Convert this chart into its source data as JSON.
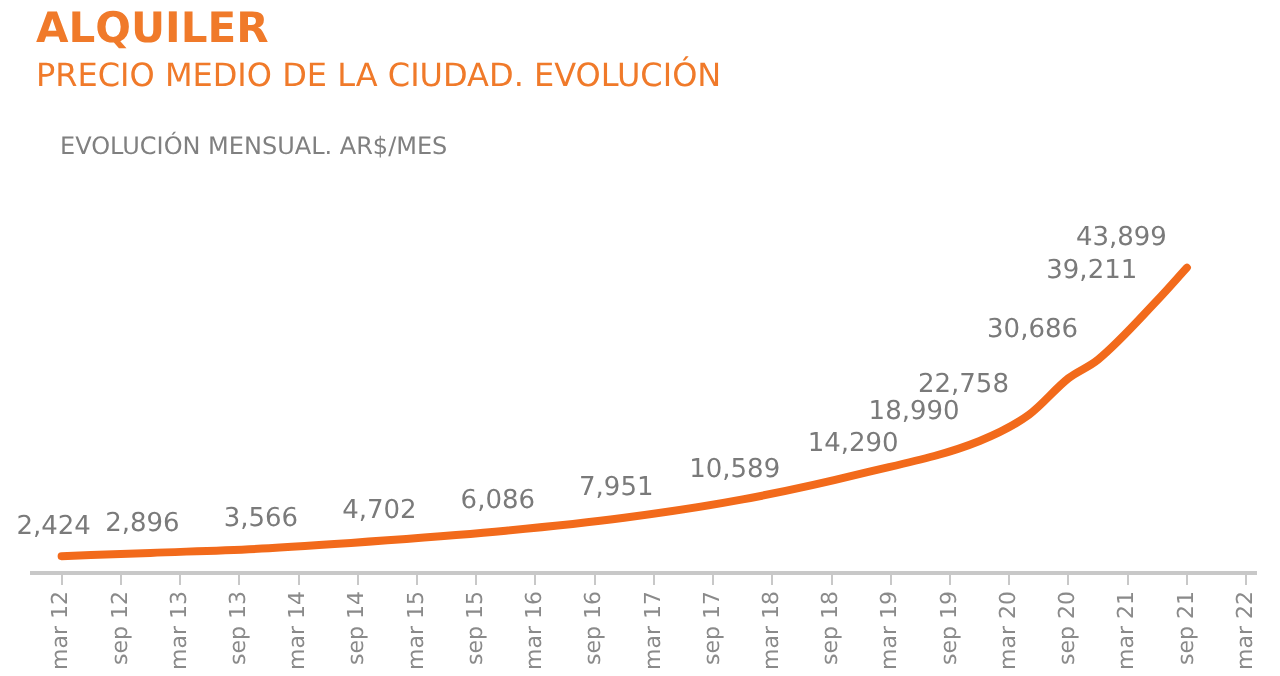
{
  "chart_data": {
    "type": "line",
    "title": "ALQUILER",
    "subtitle": "PRECIO MEDIO DE LA CIUDAD. EVOLUCIÓN",
    "annotations": [
      "EVOLUCIÓN MENSUAL. AR$/MES"
    ],
    "series": [
      {
        "color": "#f26a1b",
        "x": [
          "2012-03",
          "2012-12",
          "2013-12",
          "2014-12",
          "2015-12",
          "2016-12",
          "2017-12",
          "2018-12",
          "2019-12",
          "2020-05",
          "2020-09",
          "2020-12",
          "2021-06",
          "2021-09"
        ],
        "values": [
          2424,
          2896,
          3566,
          4702,
          6086,
          7951,
          10589,
          14290,
          18990,
          22758,
          28000,
          30686,
          39211,
          43899
        ],
        "value_labels": [
          "2,424",
          "2,896",
          "3,566",
          "4,702",
          "6,086",
          "7,951",
          "10,589",
          "14,290",
          "18,990",
          "22,758",
          null,
          "30,686",
          "39,211",
          "43,899"
        ]
      }
    ],
    "xlim": [
      "2011-12",
      "2022-04"
    ],
    "xticks": [
      {
        "value": "2012-03",
        "label": "mar 12"
      },
      {
        "value": "2012-09",
        "label": "sep 12"
      },
      {
        "value": "2013-03",
        "label": "mar 13"
      },
      {
        "value": "2013-09",
        "label": "sep 13"
      },
      {
        "value": "2014-03",
        "label": "mar 14"
      },
      {
        "value": "2014-09",
        "label": "sep 14"
      },
      {
        "value": "2015-03",
        "label": "mar 15"
      },
      {
        "value": "2015-09",
        "label": "sep 15"
      },
      {
        "value": "2016-03",
        "label": "mar 16"
      },
      {
        "value": "2016-09",
        "label": "sep 16"
      },
      {
        "value": "2017-03",
        "label": "mar 17"
      },
      {
        "value": "2017-09",
        "label": "sep 17"
      },
      {
        "value": "2018-03",
        "label": "mar 18"
      },
      {
        "value": "2018-09",
        "label": "sep 18"
      },
      {
        "value": "2019-03",
        "label": "mar 19"
      },
      {
        "value": "2019-09",
        "label": "sep 19"
      },
      {
        "value": "2020-03",
        "label": "mar 20"
      },
      {
        "value": "2020-09",
        "label": "sep 20"
      },
      {
        "value": "2021-03",
        "label": "mar 21"
      },
      {
        "value": "2021-09",
        "label": "sep 21"
      },
      {
        "value": "2022-03",
        "label": "mar 22"
      }
    ],
    "tick_labels": "x",
    "grid": false,
    "legend": false,
    "marker": "none",
    "line_style": "solid"
  }
}
